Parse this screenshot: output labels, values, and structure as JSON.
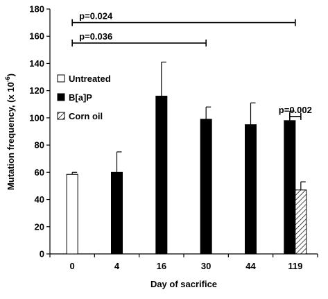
{
  "chart_data": {
    "type": "bar",
    "xlabel": "Day of sacrifice",
    "ylabel_main": "Mutation frequency, (x 10",
    "ylabel_exp": "-6",
    "ylabel_close": ")",
    "ylim": [
      0,
      180
    ],
    "yticks": [
      0,
      20,
      40,
      60,
      80,
      100,
      120,
      140,
      160,
      180
    ],
    "categories": [
      "0",
      "4",
      "16",
      "30",
      "44",
      "119"
    ],
    "series": [
      {
        "name": "Untreated",
        "fill": "#ffffff",
        "pattern": "none",
        "values": [
          58.5,
          null,
          null,
          null,
          null,
          null
        ],
        "errors": [
          1.5,
          null,
          null,
          null,
          null,
          null
        ]
      },
      {
        "name": "B[a]P",
        "fill": "#000000",
        "pattern": "none",
        "values": [
          null,
          60,
          116,
          99,
          95,
          98
        ],
        "errors": [
          null,
          15,
          25,
          9,
          16,
          7
        ]
      },
      {
        "name": "Corn oil",
        "fill": "#ffffff",
        "pattern": "hatch",
        "values": [
          null,
          null,
          null,
          null,
          null,
          47
        ],
        "errors": [
          null,
          null,
          null,
          null,
          null,
          6
        ]
      }
    ],
    "legend": {
      "placement": "top-left"
    },
    "annotations": [
      {
        "text": "p=0.024",
        "from": "0",
        "to": "119",
        "y": 170
      },
      {
        "text": "p=0.036",
        "from": "0",
        "to": "30",
        "y": 155
      },
      {
        "text": "p=0.002",
        "from": "119",
        "to": "119",
        "y": 101
      }
    ]
  }
}
